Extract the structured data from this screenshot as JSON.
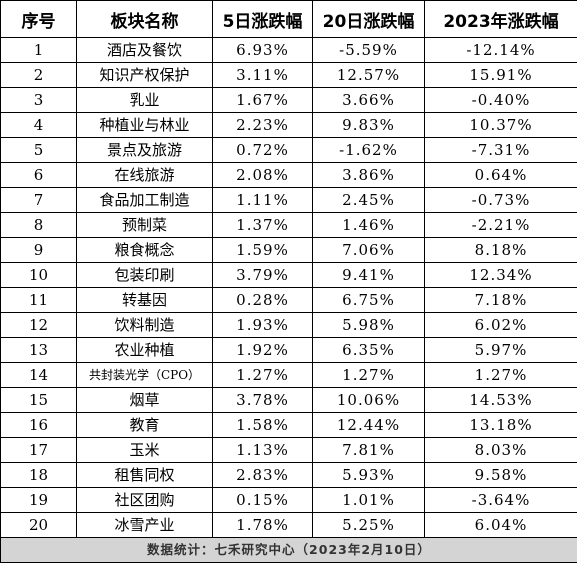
{
  "table": {
    "headers": [
      "序号",
      "板块名称",
      "5日涨跌幅",
      "20日涨跌幅",
      "2023年涨跌幅"
    ],
    "rows": [
      [
        "1",
        "酒店及餐饮",
        "6.93%",
        "-5.59%",
        "-12.14%"
      ],
      [
        "2",
        "知识产权保护",
        "3.11%",
        "12.57%",
        "15.91%"
      ],
      [
        "3",
        "乳业",
        "1.67%",
        "3.66%",
        "-0.40%"
      ],
      [
        "4",
        "种植业与林业",
        "2.23%",
        "9.83%",
        "10.37%"
      ],
      [
        "5",
        "景点及旅游",
        "0.72%",
        "-1.62%",
        "-7.31%"
      ],
      [
        "6",
        "在线旅游",
        "2.08%",
        "3.86%",
        "0.64%"
      ],
      [
        "7",
        "食品加工制造",
        "1.11%",
        "2.45%",
        "-0.73%"
      ],
      [
        "8",
        "预制菜",
        "1.37%",
        "1.46%",
        "-2.21%"
      ],
      [
        "9",
        "粮食概念",
        "1.59%",
        "7.06%",
        "8.18%"
      ],
      [
        "10",
        "包装印刷",
        "3.79%",
        "9.41%",
        "12.34%"
      ],
      [
        "11",
        "转基因",
        "0.28%",
        "6.75%",
        "7.18%"
      ],
      [
        "12",
        "饮料制造",
        "1.93%",
        "5.98%",
        "6.02%"
      ],
      [
        "13",
        "农业种植",
        "1.92%",
        "6.35%",
        "5.97%"
      ],
      [
        "14",
        "共封装光学（CPO）",
        "1.27%",
        "1.27%",
        "1.27%"
      ],
      [
        "15",
        "烟草",
        "3.78%",
        "10.06%",
        "14.53%"
      ],
      [
        "16",
        "教育",
        "1.58%",
        "12.44%",
        "13.18%"
      ],
      [
        "17",
        "玉米",
        "1.13%",
        "7.81%",
        "8.03%"
      ],
      [
        "18",
        "租售同权",
        "2.83%",
        "5.93%",
        "9.58%"
      ],
      [
        "19",
        "社区团购",
        "0.15%",
        "1.01%",
        "-3.64%"
      ],
      [
        "20",
        "冰雪产业",
        "1.78%",
        "5.25%",
        "6.04%"
      ]
    ],
    "footer": "数据统计：七禾研究中心（2023年2月10日）"
  }
}
